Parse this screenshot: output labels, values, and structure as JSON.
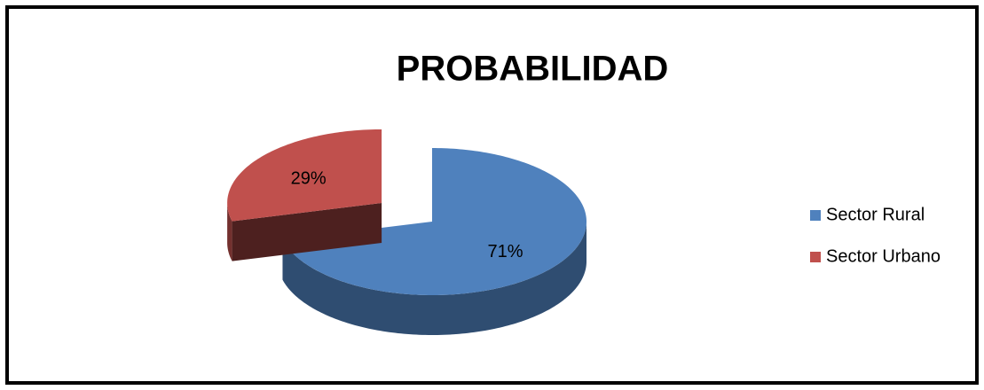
{
  "chart_data": {
    "type": "pie",
    "title": "PROBABILIDAD",
    "categories": [
      "Sector Rural",
      "Sector Urbano"
    ],
    "values": [
      71,
      29
    ],
    "value_labels": [
      "71%",
      "29%"
    ],
    "colors": [
      "#4f81bd",
      "#c0504d"
    ],
    "legend": "right"
  }
}
